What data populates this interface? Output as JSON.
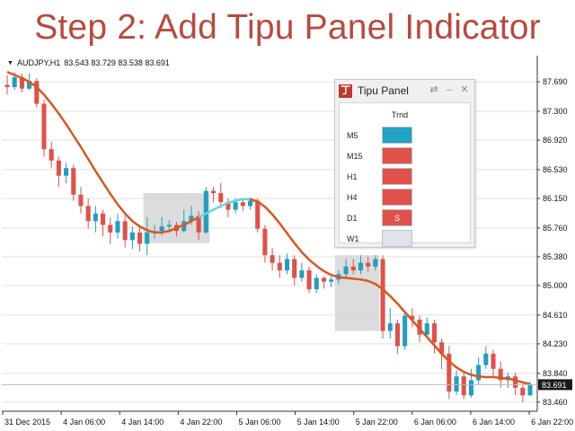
{
  "headline": "Step 2: Add Tipu Panel Indicator",
  "chart_header": {
    "symbol": "AUDJPY,H1",
    "quote": "83.543 83.729 83.538 83.691"
  },
  "price_axis": {
    "labels": [
      "87.690",
      "87.300",
      "86.920",
      "86.530",
      "86.150",
      "85.760",
      "85.380",
      "85.000",
      "84.610",
      "84.230",
      "83.840",
      "83.460"
    ],
    "current_price": "83.691"
  },
  "time_axis": {
    "labels": [
      "31 Dec 2015",
      "4 Jan 06:00",
      "4 Jan 14:00",
      "4 Jan 22:00",
      "5 Jan 06:00",
      "5 Jan 14:00",
      "5 Jan 22:00",
      "6 Jan 06:00",
      "6 Jan 14:00",
      "6 Jan 22:00"
    ]
  },
  "colors": {
    "bull": "#1f9fc1",
    "bear": "#e0514b",
    "ma_line": "#d9581f",
    "ma_highlight": "#5fd8e8",
    "zone": "#d6d6d6",
    "grid": "#e2e2e2",
    "panel_blue": "#20a3c7",
    "panel_red": "#e0514b",
    "panel_gray": "#dfe3ea"
  },
  "panel": {
    "title": "Tipu Panel",
    "logo": "丁",
    "controls": {
      "refresh": "⇄",
      "minimize": "–",
      "close": "✕"
    },
    "column_header": "Trnd",
    "rows": [
      {
        "timeframe": "M5",
        "state": "blue",
        "text": ""
      },
      {
        "timeframe": "M15",
        "state": "red",
        "text": ""
      },
      {
        "timeframe": "H1",
        "state": "red",
        "text": ""
      },
      {
        "timeframe": "H4",
        "state": "red",
        "text": ""
      },
      {
        "timeframe": "D1",
        "state": "red",
        "text": "S"
      },
      {
        "timeframe": "W1",
        "state": "gray",
        "text": ""
      }
    ]
  },
  "chart_data": {
    "type": "candlestick",
    "symbol": "AUDJPY",
    "timeframe": "H1",
    "ylim": [
      83.34,
      87.94
    ],
    "y_ticks": [
      87.69,
      87.3,
      86.92,
      86.53,
      86.15,
      85.76,
      85.38,
      85.0,
      84.61,
      84.23,
      83.84,
      83.46
    ],
    "x_ticks": [
      "31 Dec 2015",
      "4 Jan 06:00",
      "4 Jan 14:00",
      "4 Jan 22:00",
      "5 Jan 06:00",
      "5 Jan 14:00",
      "5 Jan 22:00",
      "6 Jan 06:00",
      "6 Jan 14:00",
      "6 Jan 22:00"
    ],
    "last_price": 83.691,
    "candles": [
      [
        87.65,
        87.62,
        87.78,
        87.52
      ],
      [
        87.62,
        87.75,
        87.82,
        87.58
      ],
      [
        87.75,
        87.6,
        87.8,
        87.55
      ],
      [
        87.6,
        87.7,
        87.8,
        87.58
      ],
      [
        87.7,
        87.4,
        87.74,
        87.35
      ],
      [
        87.4,
        86.8,
        87.45,
        86.7
      ],
      [
        86.8,
        86.65,
        86.9,
        86.55
      ],
      [
        86.65,
        86.45,
        86.7,
        86.3
      ],
      [
        86.45,
        86.55,
        86.62,
        86.35
      ],
      [
        86.55,
        86.2,
        86.6,
        86.12
      ],
      [
        86.2,
        86.05,
        86.3,
        85.95
      ],
      [
        86.05,
        85.85,
        86.15,
        85.75
      ],
      [
        85.85,
        85.95,
        86.05,
        85.7
      ],
      [
        85.95,
        85.8,
        86.0,
        85.65
      ],
      [
        85.8,
        85.7,
        85.9,
        85.55
      ],
      [
        85.7,
        85.85,
        85.95,
        85.62
      ],
      [
        85.85,
        85.6,
        85.92,
        85.5
      ],
      [
        85.6,
        85.7,
        85.78,
        85.48
      ],
      [
        85.7,
        85.55,
        85.8,
        85.45
      ],
      [
        85.55,
        85.7,
        85.9,
        85.4
      ],
      [
        85.7,
        85.72,
        85.8,
        85.62
      ],
      [
        85.72,
        85.78,
        85.9,
        85.66
      ],
      [
        85.78,
        85.8,
        85.86,
        85.7
      ],
      [
        85.8,
        85.72,
        85.84,
        85.65
      ],
      [
        85.72,
        85.85,
        86.0,
        85.7
      ],
      [
        85.85,
        85.92,
        86.05,
        85.8
      ],
      [
        85.92,
        85.7,
        85.98,
        85.6
      ],
      [
        85.7,
        86.25,
        86.3,
        85.68
      ],
      [
        86.25,
        86.22,
        86.3,
        86.1
      ],
      [
        86.22,
        86.1,
        86.35,
        86.02
      ],
      [
        86.1,
        86.0,
        86.15,
        85.9
      ],
      [
        86.0,
        86.1,
        86.15,
        85.95
      ],
      [
        86.1,
        86.05,
        86.14,
        85.98
      ],
      [
        86.05,
        86.12,
        86.16,
        86.0
      ],
      [
        86.12,
        85.75,
        86.15,
        85.7
      ],
      [
        85.75,
        85.4,
        85.8,
        85.3
      ],
      [
        85.4,
        85.3,
        85.5,
        85.2
      ],
      [
        85.3,
        85.2,
        85.4,
        85.1
      ],
      [
        85.2,
        85.35,
        85.42,
        85.15
      ],
      [
        85.35,
        85.1,
        85.4,
        85.0
      ],
      [
        85.1,
        85.2,
        85.3,
        85.05
      ],
      [
        85.2,
        84.95,
        85.25,
        84.9
      ],
      [
        84.95,
        85.1,
        85.15,
        84.9
      ],
      [
        85.1,
        85.05,
        85.12,
        84.96
      ],
      [
        85.05,
        85.08,
        85.12,
        84.98
      ],
      [
        85.08,
        85.15,
        85.2,
        85.02
      ],
      [
        85.15,
        85.25,
        85.35,
        85.1
      ],
      [
        85.25,
        85.2,
        85.35,
        85.15
      ],
      [
        85.2,
        85.3,
        85.4,
        85.15
      ],
      [
        85.3,
        85.25,
        85.38,
        85.18
      ],
      [
        85.25,
        85.35,
        85.4,
        85.2
      ],
      [
        85.35,
        84.4,
        85.4,
        84.3
      ],
      [
        84.4,
        84.5,
        84.7,
        84.3
      ],
      [
        84.5,
        84.2,
        84.55,
        84.1
      ],
      [
        84.2,
        84.6,
        84.65,
        84.15
      ],
      [
        84.6,
        84.55,
        84.7,
        84.45
      ],
      [
        84.55,
        84.35,
        84.6,
        84.25
      ],
      [
        84.35,
        84.5,
        84.58,
        84.3
      ],
      [
        84.5,
        84.25,
        84.55,
        84.1
      ],
      [
        84.25,
        84.1,
        84.3,
        83.9
      ],
      [
        84.1,
        83.6,
        84.2,
        83.5
      ],
      [
        83.6,
        83.8,
        83.88,
        83.55
      ],
      [
        83.8,
        83.55,
        83.85,
        83.5
      ],
      [
        83.55,
        83.75,
        83.9,
        83.52
      ],
      [
        83.75,
        83.95,
        84.05,
        83.7
      ],
      [
        83.95,
        84.1,
        84.2,
        83.9
      ],
      [
        84.1,
        83.9,
        84.15,
        83.8
      ],
      [
        83.9,
        83.75,
        84.0,
        83.65
      ],
      [
        83.75,
        83.8,
        83.85,
        83.65
      ],
      [
        83.8,
        83.65,
        83.85,
        83.55
      ],
      [
        83.65,
        83.55,
        83.7,
        83.46
      ],
      [
        83.55,
        83.69,
        83.73,
        83.54
      ]
    ],
    "moving_average": [
      87.82,
      87.78,
      87.74,
      87.69,
      87.62,
      87.52,
      87.4,
      87.27,
      87.13,
      86.98,
      86.83,
      86.67,
      86.51,
      86.36,
      86.21,
      86.07,
      85.95,
      85.85,
      85.78,
      85.73,
      85.7,
      85.7,
      85.72,
      85.76,
      85.8,
      85.85,
      85.9,
      85.95,
      86.0,
      86.05,
      86.09,
      86.12,
      86.14,
      86.14,
      86.11,
      86.04,
      85.94,
      85.82,
      85.69,
      85.56,
      85.44,
      85.34,
      85.26,
      85.19,
      85.14,
      85.11,
      85.1,
      85.09,
      85.08,
      85.06,
      85.02,
      84.95,
      84.86,
      84.76,
      84.65,
      84.54,
      84.43,
      84.32,
      84.21,
      84.1,
      84.0,
      83.92,
      83.86,
      83.82,
      83.8,
      83.79,
      83.79,
      83.78,
      83.77,
      83.75,
      83.72,
      83.7
    ],
    "highlight_range": [
      26,
      33
    ],
    "zones": [
      {
        "from": 19,
        "to": 27,
        "top": 86.22,
        "bottom": 85.56
      },
      {
        "from": 45,
        "to": 50,
        "top": 85.4,
        "bottom": 84.4
      }
    ]
  }
}
